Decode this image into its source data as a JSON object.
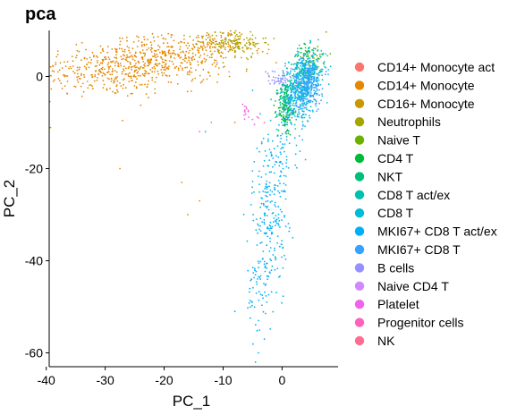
{
  "chart_data": {
    "type": "scatter",
    "title": "pca",
    "xlabel": "PC_1",
    "ylabel": "PC_2",
    "xlim": [
      -39.5,
      9.5
    ],
    "ylim": [
      -63,
      10
    ],
    "x_ticks": [
      -40,
      -30,
      -20,
      -10,
      0
    ],
    "y_ticks": [
      0,
      -20,
      -40,
      -60
    ],
    "grid": false,
    "legend_position": "right",
    "series": [
      {
        "name": "CD14+ Monocyte act",
        "color": "#F8766D",
        "clusters": [],
        "points": [
          [
            4.8,
            3.2
          ],
          [
            5.2,
            4.0
          ]
        ]
      },
      {
        "name": "CD14+ Monocyte",
        "color": "#E58700",
        "clusters": [
          [
            -30,
            1.5,
            6,
            3,
            260
          ],
          [
            -20,
            4,
            5,
            2.5,
            250
          ],
          [
            -24,
            2,
            6,
            3,
            120
          ],
          [
            -13,
            6,
            3,
            2,
            80
          ]
        ],
        "points": [
          [
            -38,
            1
          ],
          [
            -37.5,
            -1.5
          ],
          [
            -27.5,
            -20
          ],
          [
            -17,
            -23
          ],
          [
            -16,
            -30
          ],
          [
            -14,
            -27
          ],
          [
            -8,
            -10
          ],
          [
            -4,
            6
          ],
          [
            -2.5,
            5
          ],
          [
            -1,
            3
          ]
        ]
      },
      {
        "name": "CD16+ Monocyte",
        "color": "#C99800",
        "clusters": [
          [
            -9,
            7,
            3,
            1.8,
            100
          ]
        ],
        "points": []
      },
      {
        "name": "Neutrophils",
        "color": "#A3A500",
        "clusters": [
          [
            -8,
            7.5,
            3,
            1.2,
            80
          ]
        ],
        "points": [
          [
            -10,
            3
          ],
          [
            -6,
            4
          ],
          [
            -5,
            5
          ]
        ]
      },
      {
        "name": "Naive T",
        "color": "#6BB100",
        "clusters": [
          [
            5.5,
            4.5,
            1.2,
            1.5,
            30
          ]
        ],
        "points": []
      },
      {
        "name": "CD4 T",
        "color": "#00BA38",
        "clusters": [
          [
            0.5,
            -7,
            0.6,
            3,
            120
          ],
          [
            4.5,
            3,
            1.2,
            2,
            60
          ]
        ],
        "points": []
      },
      {
        "name": "NKT",
        "color": "#00BF7D",
        "clusters": [
          [
            1,
            -5,
            0.8,
            2.5,
            60
          ]
        ],
        "points": []
      },
      {
        "name": "CD8 T act/ex",
        "color": "#00C0AF",
        "clusters": [
          [
            3,
            -2,
            1.2,
            3,
            120
          ]
        ],
        "points": []
      },
      {
        "name": "CD8 T",
        "color": "#00BCD8",
        "clusters": [
          [
            4.5,
            1.5,
            1.5,
            2.5,
            200
          ],
          [
            2.5,
            -4,
            1.5,
            3,
            200
          ]
        ],
        "points": []
      },
      {
        "name": "MKI67+ CD8 T act/ex",
        "color": "#00B0F6",
        "clusters": [
          [
            -2,
            -28,
            1.5,
            8,
            200
          ],
          [
            -3.5,
            -45,
            1.2,
            5,
            80
          ],
          [
            0.5,
            -15,
            1.5,
            4,
            60
          ]
        ],
        "points": [
          [
            -4.5,
            -62
          ],
          [
            -4,
            -60
          ],
          [
            -3,
            -57
          ],
          [
            -4,
            -53
          ],
          [
            -8,
            -51
          ],
          [
            -13,
            -12
          ],
          [
            -5,
            -3
          ]
        ]
      },
      {
        "name": "MKI67+ CD8 T",
        "color": "#35A2FF",
        "clusters": [
          [
            4.5,
            -1,
            1.2,
            2.5,
            200
          ],
          [
            3,
            -5,
            1.2,
            2.5,
            100
          ]
        ],
        "points": []
      },
      {
        "name": "B cells",
        "color": "#9590FF",
        "clusters": [
          [
            -0.5,
            -0.5,
            1.5,
            1,
            50
          ]
        ],
        "points": []
      },
      {
        "name": "Naive CD4 T",
        "color": "#D089FF",
        "clusters": [],
        "points": [
          [
            -10,
            2
          ],
          [
            -11,
            3
          ],
          [
            -9,
            1
          ]
        ]
      },
      {
        "name": "Platelet",
        "color": "#F062EB",
        "clusters": [
          [
            -6,
            -8,
            1.2,
            1.5,
            15
          ]
        ],
        "points": [
          [
            -14,
            -12
          ],
          [
            -12,
            -10
          ]
        ]
      },
      {
        "name": "Progenitor cells",
        "color": "#FF62BC",
        "clusters": [],
        "points": [
          [
            -4,
            -9
          ],
          [
            -3,
            -10
          ]
        ]
      },
      {
        "name": "NK",
        "color": "#FF6C91",
        "clusters": [],
        "points": [
          [
            -6,
            -7
          ]
        ]
      }
    ]
  }
}
